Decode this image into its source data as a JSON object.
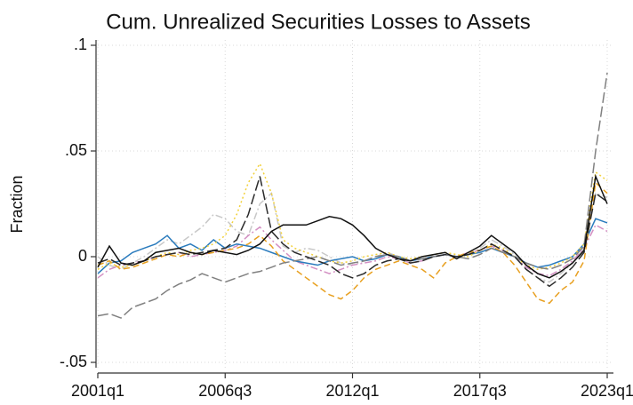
{
  "chart_data": {
    "type": "line",
    "title": "Cum. Unrealized Securities Losses to Assets",
    "y_label": "Fraction",
    "x": [
      "2001q1",
      "2001q3",
      "2002q1",
      "2002q3",
      "2003q1",
      "2003q3",
      "2004q1",
      "2004q3",
      "2005q1",
      "2005q3",
      "2006q1",
      "2006q3",
      "2007q1",
      "2007q3",
      "2008q1",
      "2008q3",
      "2009q1",
      "2009q3",
      "2010q1",
      "2010q3",
      "2011q1",
      "2011q3",
      "2012q1",
      "2012q3",
      "2013q1",
      "2013q3",
      "2014q1",
      "2014q3",
      "2015q1",
      "2015q3",
      "2016q1",
      "2016q3",
      "2017q1",
      "2017q3",
      "2018q1",
      "2018q3",
      "2019q1",
      "2019q3",
      "2020q1",
      "2020q3",
      "2021q1",
      "2021q3",
      "2022q1",
      "2022q3",
      "2023q1"
    ],
    "xticks": [
      "2001q1",
      "2006q3",
      "2012q1",
      "2017q3",
      "2023q1"
    ],
    "ylim": [
      -0.05,
      0.1
    ],
    "yticks": [
      {
        "value": -0.05,
        "label": "-.05"
      },
      0,
      {
        "value": 0.05,
        "label": ".05"
      },
      {
        "value": 0.1,
        "label": ".1"
      }
    ],
    "grid": true,
    "series": [
      {
        "color": "#c8c8c8",
        "dash": "dashdot",
        "values": [
          0,
          -0.004,
          -0.006,
          -0.003,
          0,
          0.004,
          0.008,
          0.006,
          0.01,
          0.014,
          0.02,
          0.018,
          0.012,
          0.01,
          0.025,
          0.03,
          0.005,
          0.002,
          0.004,
          0.003,
          0,
          -0.003,
          -0.004,
          -0.002,
          0,
          0.002,
          0,
          -0.003,
          -0.002,
          0.001,
          0.002,
          0,
          0.001,
          0.004,
          0.008,
          0.005,
          0.001,
          -0.006,
          -0.01,
          -0.012,
          -0.008,
          -0.003,
          0.004,
          0.03,
          0.028
        ]
      },
      {
        "color": "#d38fc2",
        "dash": "dashdot",
        "values": [
          -0.01,
          -0.006,
          -0.004,
          -0.003,
          -0.002,
          0,
          0.001,
          0.002,
          0,
          0.001,
          0.002,
          0.003,
          0.005,
          0.01,
          0.014,
          0.008,
          0.003,
          -0.002,
          -0.004,
          -0.006,
          -0.008,
          -0.006,
          -0.004,
          -0.003,
          -0.002,
          0,
          -0.001,
          -0.003,
          -0.002,
          0,
          0.001,
          0,
          0.002,
          0.003,
          0.005,
          0.003,
          0,
          -0.005,
          -0.008,
          -0.009,
          -0.006,
          -0.002,
          0.004,
          0.015,
          0.012
        ]
      },
      {
        "color": "#2a7bbd",
        "dash": "solid",
        "values": [
          -0.008,
          -0.003,
          -0.002,
          0.002,
          0.004,
          0.006,
          0.01,
          0.004,
          0.006,
          0.003,
          0.008,
          0.004,
          0.006,
          0.005,
          0.004,
          0.002,
          0,
          -0.002,
          -0.003,
          -0.004,
          -0.002,
          -0.001,
          0,
          -0.002,
          -0.001,
          0.001,
          0,
          -0.002,
          -0.001,
          0,
          0.001,
          0,
          0.001,
          0.002,
          0.004,
          0.002,
          0,
          -0.003,
          -0.005,
          -0.004,
          -0.002,
          0,
          0.006,
          0.018,
          0.016
        ]
      },
      {
        "color": "#e8a020",
        "dash": "dashed",
        "values": [
          -0.004,
          -0.002,
          -0.006,
          -0.005,
          -0.003,
          -0.001,
          0.001,
          0,
          0.002,
          0.001,
          0.002,
          0.003,
          0.004,
          0.006,
          0.01,
          0.005,
          -0.002,
          -0.006,
          -0.01,
          -0.014,
          -0.018,
          -0.02,
          -0.016,
          -0.01,
          -0.006,
          -0.004,
          -0.002,
          -0.004,
          -0.006,
          -0.01,
          -0.003,
          0,
          0.002,
          0.003,
          0.005,
          0.002,
          -0.004,
          -0.012,
          -0.02,
          -0.022,
          -0.016,
          -0.012,
          -0.002,
          0.035,
          0.03
        ]
      },
      {
        "color": "#f2d13a",
        "dash": "dotted",
        "values": [
          -0.006,
          -0.003,
          -0.005,
          -0.004,
          -0.002,
          0,
          0.002,
          0.001,
          0.003,
          0.004,
          0.006,
          0.01,
          0.02,
          0.035,
          0.044,
          0.03,
          0.008,
          0.004,
          0.002,
          0,
          -0.002,
          -0.003,
          -0.002,
          0,
          0.001,
          0.002,
          0,
          -0.001,
          0,
          0.001,
          0.002,
          0.001,
          0,
          0.003,
          0.006,
          0.004,
          0,
          -0.004,
          -0.006,
          -0.005,
          -0.003,
          0,
          0.006,
          0.04,
          0.036
        ]
      },
      {
        "color": "#808080",
        "dash": "longdash",
        "values": [
          -0.028,
          -0.027,
          -0.029,
          -0.024,
          -0.022,
          -0.02,
          -0.016,
          -0.013,
          -0.011,
          -0.008,
          -0.01,
          -0.012,
          -0.01,
          -0.008,
          -0.007,
          -0.005,
          -0.003,
          -0.002,
          -0.001,
          0,
          -0.002,
          -0.004,
          -0.003,
          -0.002,
          0,
          0.001,
          0,
          -0.002,
          -0.001,
          0,
          0.001,
          0,
          -0.001,
          0.001,
          0.004,
          0.002,
          0,
          -0.003,
          -0.005,
          -0.006,
          -0.004,
          -0.001,
          0.005,
          0.05,
          0.087
        ]
      },
      {
        "color": "#2b2b2b",
        "dash": "longdash",
        "values": [
          -0.003,
          -0.001,
          -0.004,
          -0.003,
          -0.002,
          0,
          0.001,
          0.002,
          0.001,
          0.002,
          0.003,
          0.004,
          0.008,
          0.02,
          0.038,
          0.012,
          0.006,
          0.002,
          0,
          -0.002,
          -0.004,
          -0.008,
          -0.01,
          -0.008,
          -0.004,
          -0.002,
          -0.001,
          -0.003,
          -0.002,
          0,
          0.001,
          0,
          0.001,
          0.003,
          0.006,
          0.003,
          0,
          -0.006,
          -0.01,
          -0.014,
          -0.01,
          -0.005,
          0.002,
          0.03,
          0.026
        ]
      },
      {
        "color": "#111111",
        "dash": "solid",
        "values": [
          -0.005,
          0.005,
          -0.003,
          -0.004,
          -0.002,
          0.002,
          0.003,
          0.004,
          0.002,
          0.001,
          0.003,
          0.002,
          0.001,
          0.003,
          0.006,
          0.012,
          0.015,
          0.015,
          0.015,
          0.017,
          0.019,
          0.018,
          0.015,
          0.01,
          0.004,
          0.001,
          -0.001,
          -0.002,
          0,
          0.001,
          0.002,
          -0.001,
          0.002,
          0.005,
          0.01,
          0.006,
          0.002,
          -0.004,
          -0.008,
          -0.01,
          -0.007,
          -0.003,
          0.003,
          0.038,
          0.025
        ]
      }
    ]
  }
}
